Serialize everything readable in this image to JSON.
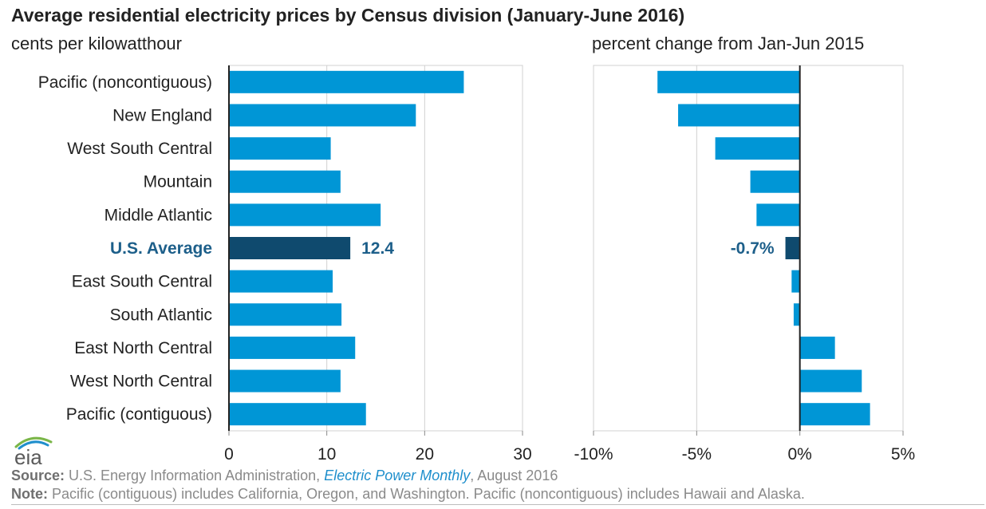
{
  "title": "Average residential electricity prices by Census division (January-June 2016)",
  "left_subtitle": "cents per kilowatthour",
  "right_subtitle": "percent change from Jan-Jun 2015",
  "colors": {
    "bar": "#0096d6",
    "highlight": "#0f4a6e",
    "highlight_label": "#1d5f8a",
    "grid": "#d0d0d0",
    "axis": "#222222"
  },
  "chart_data": [
    {
      "type": "bar",
      "orientation": "horizontal",
      "categories": [
        "Pacific (noncontiguous)",
        "New England",
        "West South Central",
        "Mountain",
        "Middle Atlantic",
        "U.S. Average",
        "East South Central",
        "South Atlantic",
        "East North Central",
        "West North Central",
        "Pacific (contiguous)"
      ],
      "values": [
        24.0,
        19.1,
        10.4,
        11.4,
        15.5,
        12.4,
        10.6,
        11.5,
        12.9,
        11.4,
        14.0
      ],
      "highlight_category": "U.S. Average",
      "highlight_label": "12.4",
      "xlim": [
        0,
        30
      ],
      "xticks": [
        "0",
        "10",
        "20",
        "30"
      ],
      "grid": true
    },
    {
      "type": "bar",
      "orientation": "horizontal",
      "categories": [
        "Pacific (noncontiguous)",
        "New England",
        "West South Central",
        "Mountain",
        "Middle Atlantic",
        "U.S. Average",
        "East South Central",
        "South Atlantic",
        "East North Central",
        "West North Central",
        "Pacific (contiguous)"
      ],
      "values": [
        -6.9,
        -5.9,
        -4.1,
        -2.4,
        -2.1,
        -0.7,
        -0.4,
        -0.3,
        1.7,
        3.0,
        3.4
      ],
      "highlight_category": "U.S. Average",
      "highlight_label": "-0.7%",
      "xlim": [
        -10,
        5
      ],
      "xticks": [
        "-10%",
        "-5%",
        "0%",
        "5%"
      ],
      "grid": true
    }
  ],
  "footer": {
    "logo_text": "eia",
    "source_label": "Source:",
    "source_text_1": " U.S. Energy Information Administration, ",
    "source_publication": "Electric Power Monthly",
    "source_text_2": ", August 2016",
    "note_label": "Note:",
    "note_text": " Pacific (contiguous) includes California, Oregon, and Washington. Pacific (noncontiguous) includes Hawaii and Alaska."
  }
}
